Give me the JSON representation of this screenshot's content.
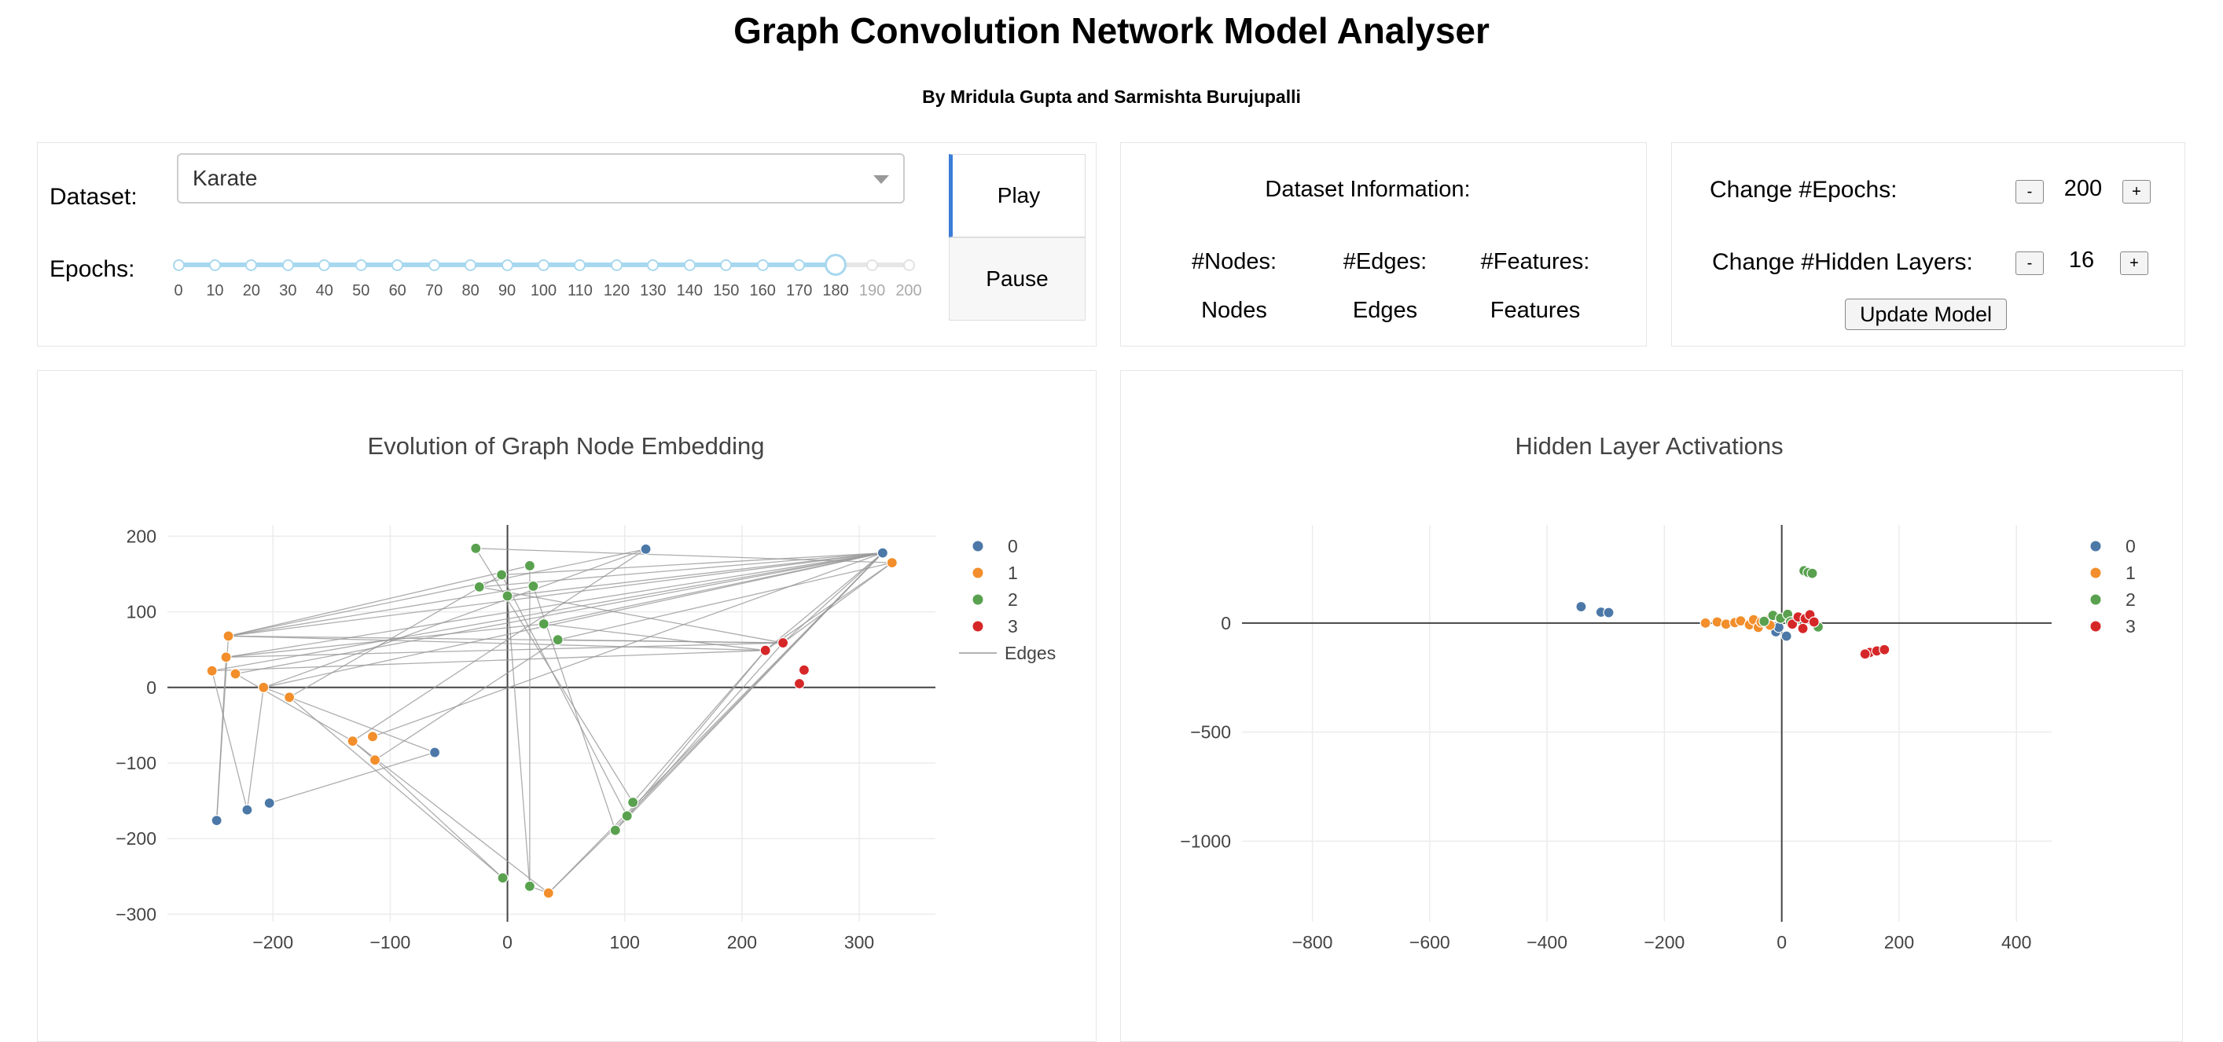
{
  "header": {
    "title": "Graph Convolution Network Model Analyser",
    "subtitle": "By Mridula Gupta and Sarmishta Burujupalli"
  },
  "controls": {
    "dataset_label": "Dataset:",
    "dataset_value": "Karate",
    "epochs_label": "Epochs:",
    "slider": {
      "min": 0,
      "max": 200,
      "step": 10,
      "value": 180,
      "ticks": [
        "0",
        "10",
        "20",
        "30",
        "40",
        "50",
        "60",
        "70",
        "80",
        "90",
        "100",
        "110",
        "120",
        "130",
        "140",
        "150",
        "160",
        "170",
        "180",
        "190",
        "200"
      ]
    },
    "play_label": "Play",
    "pause_label": "Pause"
  },
  "dataset_info": {
    "title": "Dataset Information:",
    "nodes_label": "#Nodes:",
    "edges_label": "#Edges:",
    "features_label": "#Features:",
    "nodes_value": "Nodes",
    "edges_value": "Edges",
    "features_value": "Features"
  },
  "model_settings": {
    "epochs_label": "Change #Epochs:",
    "epochs_value": "200",
    "hidden_label": "Change #Hidden Layers:",
    "hidden_value": "16",
    "minus": "-",
    "plus": "+",
    "update_label": "Update Model"
  },
  "colors": {
    "0": "#4c78a8",
    "1": "#f28e2b",
    "2": "#59a14f",
    "3": "#d62728",
    "edges": "#999999"
  },
  "chart_data": [
    {
      "type": "scatter",
      "title": "Evolution of Graph Node Embedding",
      "xlim": [
        -290,
        365
      ],
      "ylim": [
        -310,
        215
      ],
      "xticks": [
        -200,
        -100,
        0,
        100,
        200,
        300
      ],
      "yticks": [
        -300,
        -200,
        -100,
        0,
        100,
        200
      ],
      "legend": [
        "0",
        "1",
        "2",
        "3",
        "Edges"
      ],
      "legend_position": "top-right",
      "nodes": [
        {
          "x": 320,
          "y": 178,
          "c": 0
        },
        {
          "x": 118,
          "y": 183,
          "c": 0
        },
        {
          "x": -62,
          "y": -86,
          "c": 0
        },
        {
          "x": -248,
          "y": -176,
          "c": 0
        },
        {
          "x": -222,
          "y": -162,
          "c": 0
        },
        {
          "x": -203,
          "y": -153,
          "c": 0
        },
        {
          "x": 328,
          "y": 165,
          "c": 1
        },
        {
          "x": -238,
          "y": 68,
          "c": 1
        },
        {
          "x": -240,
          "y": 40,
          "c": 1
        },
        {
          "x": -252,
          "y": 22,
          "c": 1
        },
        {
          "x": -232,
          "y": 18,
          "c": 1
        },
        {
          "x": -208,
          "y": 0,
          "c": 1
        },
        {
          "x": -186,
          "y": -13,
          "c": 1
        },
        {
          "x": -132,
          "y": -71,
          "c": 1
        },
        {
          "x": -115,
          "y": -65,
          "c": 1
        },
        {
          "x": -113,
          "y": -96,
          "c": 1
        },
        {
          "x": 35,
          "y": -272,
          "c": 1
        },
        {
          "x": -27,
          "y": 184,
          "c": 2
        },
        {
          "x": 19,
          "y": 161,
          "c": 2
        },
        {
          "x": -5,
          "y": 149,
          "c": 2
        },
        {
          "x": -24,
          "y": 133,
          "c": 2
        },
        {
          "x": 22,
          "y": 134,
          "c": 2
        },
        {
          "x": 0,
          "y": 121,
          "c": 2
        },
        {
          "x": 31,
          "y": 84,
          "c": 2
        },
        {
          "x": 43,
          "y": 63,
          "c": 2
        },
        {
          "x": 107,
          "y": -152,
          "c": 2
        },
        {
          "x": 102,
          "y": -170,
          "c": 2
        },
        {
          "x": 92,
          "y": -189,
          "c": 2
        },
        {
          "x": -4,
          "y": -252,
          "c": 2
        },
        {
          "x": 19,
          "y": -263,
          "c": 2
        },
        {
          "x": 235,
          "y": 59,
          "c": 3
        },
        {
          "x": 220,
          "y": 49,
          "c": 3
        },
        {
          "x": 253,
          "y": 23,
          "c": 3
        },
        {
          "x": 249,
          "y": 5,
          "c": 3
        }
      ],
      "edges": [
        [
          0,
          8
        ],
        [
          0,
          9
        ],
        [
          0,
          10
        ],
        [
          0,
          11
        ],
        [
          0,
          7
        ],
        [
          0,
          19
        ],
        [
          0,
          20
        ],
        [
          0,
          22
        ],
        [
          0,
          23
        ],
        [
          0,
          26
        ],
        [
          0,
          27
        ],
        [
          0,
          30
        ],
        [
          0,
          31
        ],
        [
          0,
          16
        ],
        [
          0,
          14
        ],
        [
          1,
          7
        ],
        [
          1,
          11
        ],
        [
          1,
          13
        ],
        [
          6,
          30
        ],
        [
          6,
          31
        ],
        [
          6,
          24
        ],
        [
          6,
          17
        ],
        [
          7,
          30
        ],
        [
          7,
          31
        ],
        [
          7,
          21
        ],
        [
          7,
          18
        ],
        [
          8,
          30
        ],
        [
          8,
          23
        ],
        [
          9,
          31
        ],
        [
          10,
          13
        ],
        [
          11,
          2
        ],
        [
          12,
          19
        ],
        [
          13,
          15
        ],
        [
          13,
          16
        ],
        [
          15,
          28
        ],
        [
          15,
          24
        ],
        [
          16,
          26
        ],
        [
          16,
          29
        ],
        [
          17,
          25
        ],
        [
          19,
          26
        ],
        [
          20,
          30
        ],
        [
          21,
          27
        ],
        [
          22,
          29
        ],
        [
          23,
          31
        ],
        [
          24,
          30
        ],
        [
          25,
          31
        ],
        [
          3,
          7
        ],
        [
          4,
          11
        ],
        [
          5,
          2
        ],
        [
          26,
          31
        ],
        [
          27,
          30
        ],
        [
          28,
          12
        ],
        [
          29,
          18
        ],
        [
          3,
          8
        ],
        [
          4,
          9
        ]
      ]
    },
    {
      "type": "scatter",
      "title": "Hidden Layer Activations",
      "xlim": [
        -920,
        460
      ],
      "ylim": [
        -1370,
        450
      ],
      "xticks": [
        -800,
        -600,
        -400,
        -200,
        0,
        200,
        400
      ],
      "yticks": [
        -1000,
        -500,
        0
      ],
      "legend": [
        "0",
        "1",
        "2",
        "3"
      ],
      "legend_position": "top-right",
      "nodes": [
        {
          "x": -342,
          "y": 75,
          "c": 0
        },
        {
          "x": -308,
          "y": 50,
          "c": 0
        },
        {
          "x": -295,
          "y": 48,
          "c": 0
        },
        {
          "x": -10,
          "y": -40,
          "c": 0
        },
        {
          "x": 8,
          "y": -60,
          "c": 0
        },
        {
          "x": -5,
          "y": -20,
          "c": 0
        },
        {
          "x": -130,
          "y": 0,
          "c": 1
        },
        {
          "x": -110,
          "y": 5,
          "c": 1
        },
        {
          "x": -95,
          "y": -5,
          "c": 1
        },
        {
          "x": -80,
          "y": 2,
          "c": 1
        },
        {
          "x": -70,
          "y": 10,
          "c": 1
        },
        {
          "x": -55,
          "y": -8,
          "c": 1
        },
        {
          "x": -48,
          "y": 15,
          "c": 1
        },
        {
          "x": -40,
          "y": -20,
          "c": 1
        },
        {
          "x": -35,
          "y": 5,
          "c": 1
        },
        {
          "x": -25,
          "y": 12,
          "c": 1
        },
        {
          "x": -20,
          "y": -10,
          "c": 1
        },
        {
          "x": 38,
          "y": 240,
          "c": 2
        },
        {
          "x": 45,
          "y": 232,
          "c": 2
        },
        {
          "x": 52,
          "y": 228,
          "c": 2
        },
        {
          "x": -15,
          "y": 35,
          "c": 2
        },
        {
          "x": -2,
          "y": 22,
          "c": 2
        },
        {
          "x": 10,
          "y": 40,
          "c": 2
        },
        {
          "x": 22,
          "y": 10,
          "c": 2
        },
        {
          "x": -30,
          "y": 8,
          "c": 2
        },
        {
          "x": 62,
          "y": -18,
          "c": 2
        },
        {
          "x": 15,
          "y": 5,
          "c": 2
        },
        {
          "x": 18,
          "y": -5,
          "c": 3
        },
        {
          "x": 28,
          "y": 28,
          "c": 3
        },
        {
          "x": 40,
          "y": 20,
          "c": 3
        },
        {
          "x": 48,
          "y": 38,
          "c": 3
        },
        {
          "x": 55,
          "y": 5,
          "c": 3
        },
        {
          "x": 36,
          "y": -25,
          "c": 3
        },
        {
          "x": 150,
          "y": -135,
          "c": 3
        },
        {
          "x": 162,
          "y": -128,
          "c": 3
        },
        {
          "x": 175,
          "y": -122,
          "c": 3
        },
        {
          "x": 142,
          "y": -142,
          "c": 3
        }
      ]
    }
  ]
}
